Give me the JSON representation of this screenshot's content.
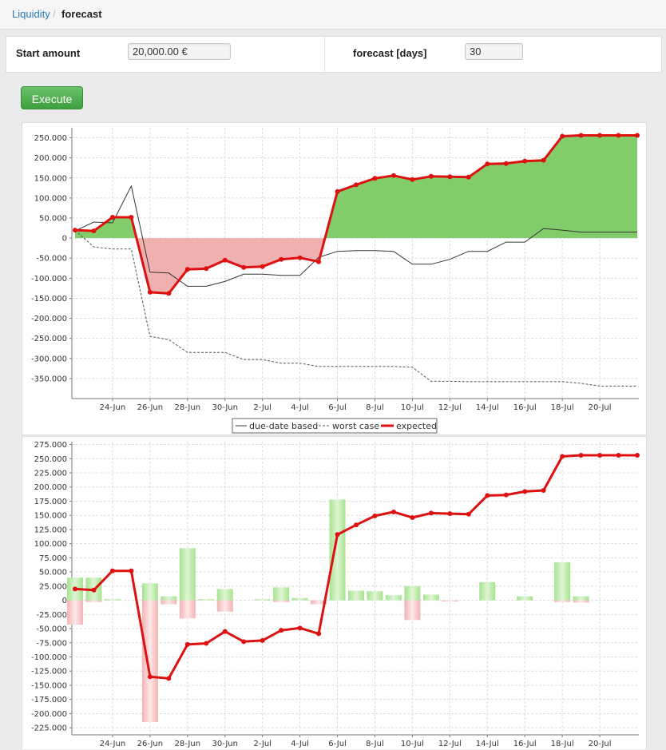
{
  "breadcrumb": {
    "parent": "Liquidity",
    "separator": "/",
    "current": "forecast"
  },
  "form": {
    "start_amount_label": "Start amount",
    "start_amount_value": "20,000.00 €",
    "forecast_days_label": "forecast [days]",
    "forecast_days_value": "30"
  },
  "execute_label": "Execute",
  "colors": {
    "positive_fill": "#82cc6c",
    "negative_fill": "#f0b0b0",
    "expected_line": "#dd1111",
    "link": "#2a7ab8",
    "button": "#4caf4c"
  },
  "chart_data": [
    {
      "type": "area",
      "x": [
        "22-Jun",
        "23-Jun",
        "24-Jun",
        "25-Jun",
        "26-Jun",
        "27-Jun",
        "28-Jun",
        "29-Jun",
        "30-Jun",
        "1-Jul",
        "2-Jul",
        "3-Jul",
        "4-Jul",
        "5-Jul",
        "6-Jul",
        "7-Jul",
        "8-Jul",
        "9-Jul",
        "10-Jul",
        "11-Jul",
        "12-Jul",
        "13-Jul",
        "14-Jul",
        "15-Jul",
        "16-Jul",
        "17-Jul",
        "18-Jul",
        "19-Jul",
        "20-Jul",
        "21-Jul",
        "22-Jul"
      ],
      "x_tick_labels": [
        "24-Jun",
        "26-Jun",
        "28-Jun",
        "30-Jun",
        "2-Jul",
        "4-Jul",
        "6-Jul",
        "8-Jul",
        "10-Jul",
        "12-Jul",
        "14-Jul",
        "16-Jul",
        "18-Jul",
        "20-Jul"
      ],
      "ylim": [
        -400000,
        275000
      ],
      "y_ticks": [
        250000,
        200000,
        150000,
        100000,
        50000,
        0,
        -50000,
        -100000,
        -150000,
        -200000,
        -250000,
        -300000,
        -350000
      ],
      "y_tick_labels": [
        "250.000",
        "200.000",
        "150.000",
        "100.000",
        "50.000",
        "0",
        "-50.000",
        "-100.000",
        "-150.000",
        "-200.000",
        "-250.000",
        "-300.000",
        "-350.000"
      ],
      "grid": true,
      "legend_position": "bottom",
      "series": [
        {
          "name": "due-date based",
          "style": "solid-thin",
          "values": [
            18000,
            40000,
            38000,
            130000,
            -85000,
            -87000,
            -120000,
            -120000,
            -108000,
            -90000,
            -90000,
            -93000,
            -93000,
            -48000,
            -33000,
            -31000,
            -31000,
            -33000,
            -65000,
            -65000,
            -53000,
            -33000,
            -33000,
            -10000,
            -10000,
            24000,
            20000,
            15000,
            15000,
            15000,
            15000
          ]
        },
        {
          "name": "worst case",
          "style": "dashed",
          "values": [
            20000,
            -22000,
            -27000,
            -27000,
            -245000,
            -253000,
            -285000,
            -285000,
            -285000,
            -303000,
            -303000,
            -312000,
            -312000,
            -320000,
            -320000,
            -320000,
            -320000,
            -320000,
            -322000,
            -357000,
            -357000,
            -358000,
            -358000,
            -358000,
            -358000,
            -358000,
            -358000,
            -362000,
            -369000,
            -369000,
            -369000
          ]
        },
        {
          "name": "expected",
          "style": "thick-markers",
          "values": [
            20000,
            18000,
            52000,
            52000,
            -135000,
            -138000,
            -78000,
            -76000,
            -55000,
            -73000,
            -71000,
            -53000,
            -49000,
            -59000,
            116000,
            133000,
            149000,
            156000,
            146000,
            154000,
            153000,
            152000,
            185000,
            186000,
            192000,
            194000,
            254000,
            256000,
            256000,
            256000,
            256000
          ]
        }
      ]
    },
    {
      "type": "bar",
      "ylim": [
        -237500,
        280000
      ],
      "y_ticks": [
        275000,
        250000,
        225000,
        200000,
        175000,
        150000,
        125000,
        100000,
        75000,
        50000,
        25000,
        0,
        -25000,
        -50000,
        -75000,
        -100000,
        -125000,
        -150000,
        -175000,
        -200000,
        -225000
      ],
      "y_tick_labels": [
        "275.000",
        "250.000",
        "225.000",
        "200.000",
        "175.000",
        "150.000",
        "125.000",
        "100.000",
        "75.000",
        "50.000",
        "25.000",
        "0",
        "-25.000",
        "-50.000",
        "-75.000",
        "-100.000",
        "-125.000",
        "-150.000",
        "-175.000",
        "-200.000",
        "-225.000"
      ],
      "x_tick_labels": [
        "24-Jun",
        "26-Jun",
        "28-Jun",
        "30-Jun",
        "2-Jul",
        "4-Jul",
        "6-Jul",
        "8-Jul",
        "10-Jul",
        "12-Jul",
        "14-Jul",
        "16-Jul",
        "18-Jul",
        "20-Jul"
      ],
      "grid": true,
      "inflows": [
        40000,
        40000,
        2000,
        0,
        30000,
        7000,
        92000,
        2000,
        20000,
        0,
        2000,
        23000,
        4000,
        0,
        178000,
        17000,
        16000,
        9000,
        25000,
        10000,
        0,
        0,
        32000,
        0,
        7000,
        0,
        67000,
        7000,
        0,
        0,
        0
      ],
      "outflows": [
        -43000,
        -3000,
        0,
        0,
        -215000,
        -7000,
        -32000,
        0,
        -20000,
        0,
        0,
        -3000,
        0,
        -7000,
        0,
        0,
        0,
        0,
        -35000,
        0,
        -2000,
        0,
        0,
        0,
        0,
        0,
        -3000,
        -4000,
        0,
        0,
        0
      ],
      "expected": [
        20000,
        18000,
        52000,
        52000,
        -135000,
        -138000,
        -78000,
        -76000,
        -55000,
        -73000,
        -71000,
        -53000,
        -49000,
        -59000,
        116000,
        133000,
        149000,
        156000,
        146000,
        154000,
        153000,
        152000,
        185000,
        186000,
        192000,
        194000,
        254000,
        256000,
        256000,
        256000,
        256000
      ]
    }
  ]
}
